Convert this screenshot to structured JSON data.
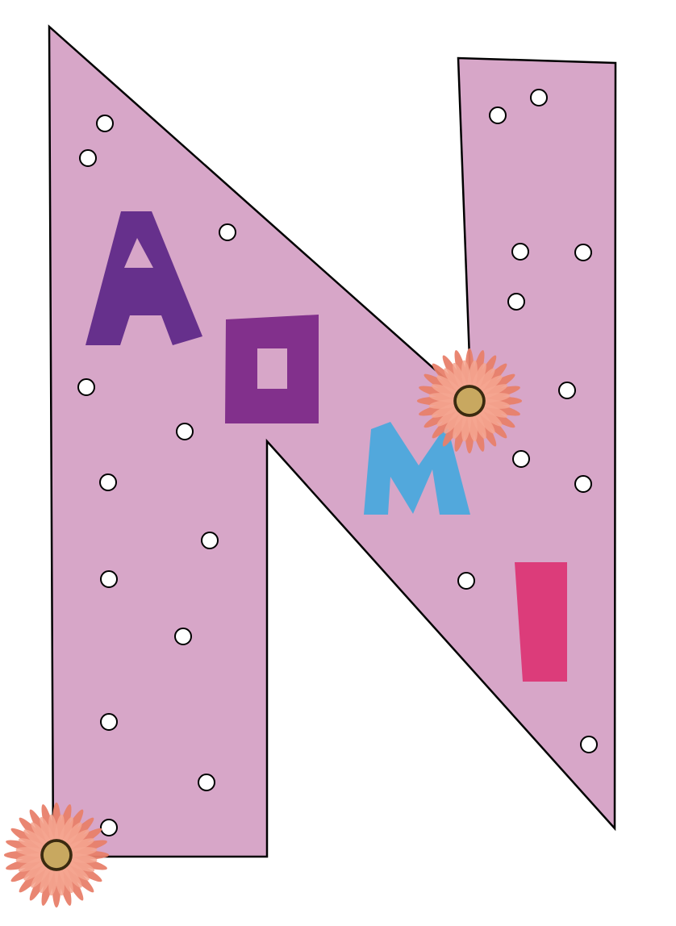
{
  "letters": [
    {
      "name": "big-letter-n",
      "char": "N"
    },
    {
      "name": "letter-a",
      "char": "A"
    },
    {
      "name": "letter-o",
      "char": "O"
    },
    {
      "name": "letter-m",
      "char": "M"
    },
    {
      "name": "letter-i",
      "char": "I"
    }
  ],
  "colors": {
    "background": "#ffffff",
    "letter_n_fill": "#d7a6c8",
    "outline": "#000000",
    "letter_a": "#66308c",
    "letter_o": "#82308c",
    "letter_m": "#52a8dc",
    "letter_i": "#dc3c7a",
    "dot_fill": "#ffffff",
    "flower_petal": "#e8806a",
    "flower_petal_light": "#f4a690",
    "flower_center": "#c8a860"
  },
  "icons": {
    "flower": "flower-icon",
    "dot": "dot-icon"
  }
}
